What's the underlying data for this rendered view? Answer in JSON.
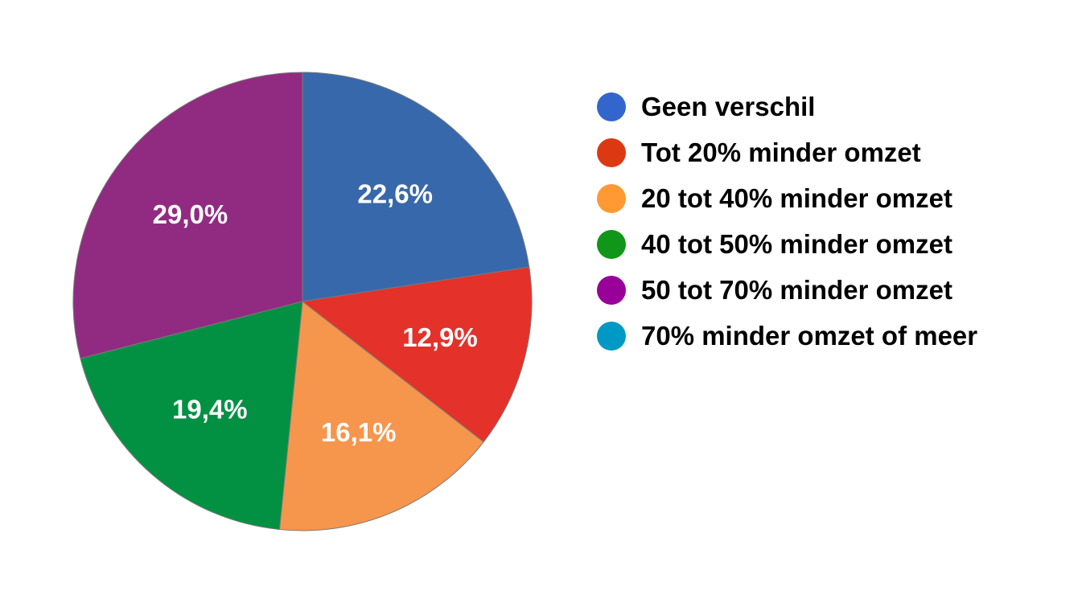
{
  "chart_data": {
    "type": "pie",
    "categories": [
      "Geen verschil",
      "Tot 20% minder omzet",
      "20 tot 40% minder omzet",
      "40 tot 50% minder omzet",
      "50 tot 70% minder omzet",
      "70% minder omzet of meer"
    ],
    "values": [
      22.6,
      12.9,
      16.1,
      19.4,
      29.0,
      0
    ],
    "data_labels": [
      "22,6%",
      "12,9%",
      "16,1%",
      "19,4%",
      "29,0%",
      ""
    ],
    "unit": "%",
    "title": "",
    "legend_position": "right"
  },
  "colors": {
    "slices": [
      "#3768ab",
      "#e4312a",
      "#f6954c",
      "#029142",
      "#912b81",
      "#0f98c3"
    ],
    "legend": [
      "#3366cc",
      "#dc3912",
      "#ff9933",
      "#109618",
      "#990099",
      "#0099c6"
    ],
    "slice_border": "#7a7a7a",
    "label_text": "#ffffff",
    "background": "#ffffff"
  }
}
